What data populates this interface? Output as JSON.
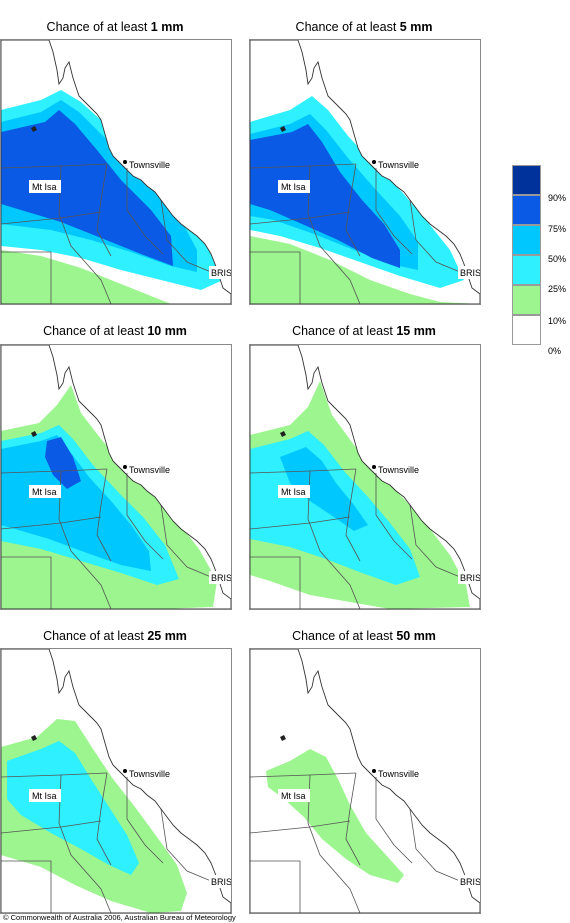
{
  "colors": {
    "p90": "#00329b",
    "p75": "#0a5ae6",
    "p50": "#00c8ff",
    "p25": "#2ef0ff",
    "p10": "#9cf58e",
    "p0": "#ffffff",
    "boundary": "#555555",
    "coast": "#333333"
  },
  "panels": [
    {
      "title_prefix": "Chance of at least ",
      "title_amount": "1 mm",
      "level": 0
    },
    {
      "title_prefix": "Chance of at least ",
      "title_amount": "5 mm",
      "level": 1
    },
    {
      "title_prefix": "Chance of at least ",
      "title_amount": "10 mm",
      "level": 2
    },
    {
      "title_prefix": "Chance of at least ",
      "title_amount": "15 mm",
      "level": 3
    },
    {
      "title_prefix": "Chance of at least ",
      "title_amount": "25 mm",
      "level": 4
    },
    {
      "title_prefix": "Chance of at least ",
      "title_amount": "50 mm",
      "level": 5
    }
  ],
  "places": {
    "townsville": "Townsville",
    "mt_isa": "Mt Isa",
    "brisbane": "BRIS"
  },
  "legend": {
    "labels": [
      "90%",
      "75%",
      "50%",
      "25%",
      "10%",
      "0%"
    ]
  },
  "footer": {
    "copyright": "© Commonwealth of Australia 2006, Australian Bureau of Meteorology"
  }
}
